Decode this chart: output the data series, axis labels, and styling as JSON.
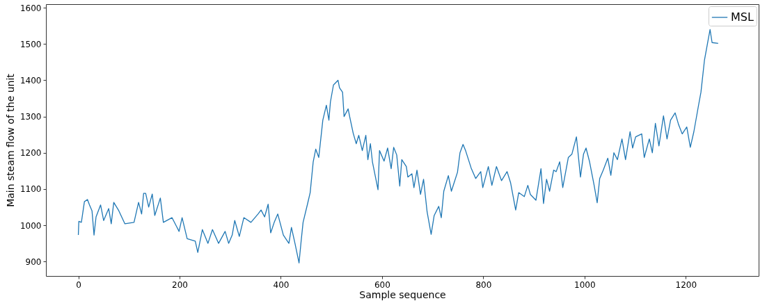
{
  "chart_data": {
    "type": "line",
    "xlabel": "Sample sequence",
    "ylabel": "Main steam flow of the unit",
    "xlim": [
      -64,
      1344
    ],
    "ylim": [
      860,
      1610
    ],
    "xticks": [
      0,
      200,
      400,
      600,
      800,
      1000,
      1200
    ],
    "yticks": [
      900,
      1000,
      1100,
      1200,
      1300,
      1400,
      1500,
      1600
    ],
    "grid": false,
    "legend": "top right",
    "marker": "none",
    "line_style": "solid",
    "series": [
      {
        "name": "MSL",
        "color": "#1f77b4",
        "x": [
          0,
          1,
          6,
          10,
          12,
          18,
          22,
          27,
          31,
          35,
          44,
          50,
          60,
          65,
          70,
          80,
          92,
          110,
          119,
          125,
          129,
          133,
          139,
          146,
          151,
          162,
          168,
          185,
          199,
          205,
          215,
          231,
          236,
          245,
          256,
          265,
          277,
          290,
          297,
          304,
          309,
          318,
          327,
          341,
          355,
          361,
          368,
          375,
          380,
          387,
          394,
          405,
          416,
          421,
          428,
          436,
          440,
          444,
          453,
          458,
          464,
          469,
          475,
          483,
          490,
          495,
          498,
          504,
          513,
          516,
          522,
          525,
          533,
          536,
          543,
          549,
          554,
          561,
          568,
          572,
          577,
          581,
          592,
          595,
          604,
          611,
          618,
          623,
          629,
          635,
          639,
          648,
          651,
          659,
          663,
          669,
          676,
          682,
          689,
          697,
          703,
          712,
          717,
          722,
          731,
          737,
          749,
          754,
          760,
          765,
          776,
          785,
          795,
          799,
          810,
          817,
          826,
          836,
          847,
          854,
          864,
          870,
          881,
          888,
          893,
          904,
          914,
          919,
          925,
          931,
          939,
          944,
          951,
          957,
          968,
          975,
          984,
          992,
          998,
          1003,
          1010,
          1019,
          1025,
          1030,
          1037,
          1046,
          1052,
          1058,
          1065,
          1074,
          1081,
          1090,
          1095,
          1101,
          1113,
          1118,
          1128,
          1134,
          1140,
          1147,
          1156,
          1163,
          1170,
          1179,
          1186,
          1193,
          1202,
          1209,
          1216,
          1225,
          1230,
          1237,
          1243,
          1248,
          1252,
          1264
        ],
        "values": [
          973,
          1011,
          1008,
          1046,
          1065,
          1071,
          1056,
          1040,
          973,
          1023,
          1056,
          1013,
          1046,
          1004,
          1063,
          1040,
          1004,
          1008,
          1063,
          1031,
          1088,
          1088,
          1050,
          1086,
          1027,
          1075,
          1008,
          1021,
          983,
          1021,
          963,
          956,
          925,
          988,
          950,
          988,
          950,
          983,
          950,
          973,
          1013,
          969,
          1021,
          1008,
          1031,
          1042,
          1023,
          1058,
          979,
          1008,
          1031,
          973,
          950,
          994,
          950,
          896,
          954,
          1008,
          1060,
          1090,
          1175,
          1210,
          1187,
          1290,
          1331,
          1290,
          1340,
          1387,
          1400,
          1379,
          1367,
          1300,
          1321,
          1300,
          1254,
          1225,
          1248,
          1206,
          1248,
          1181,
          1225,
          1175,
          1098,
          1206,
          1177,
          1213,
          1156,
          1215,
          1194,
          1108,
          1181,
          1162,
          1133,
          1142,
          1104,
          1152,
          1085,
          1127,
          1037,
          975,
          1027,
          1052,
          1021,
          1094,
          1137,
          1094,
          1146,
          1200,
          1223,
          1206,
          1158,
          1129,
          1148,
          1104,
          1162,
          1110,
          1162,
          1123,
          1148,
          1117,
          1042,
          1090,
          1079,
          1110,
          1085,
          1069,
          1156,
          1060,
          1127,
          1094,
          1152,
          1148,
          1175,
          1104,
          1187,
          1196,
          1244,
          1133,
          1196,
          1213,
          1175,
          1110,
          1062,
          1129,
          1152,
          1185,
          1138,
          1200,
          1181,
          1238,
          1181,
          1258,
          1213,
          1244,
          1252,
          1187,
          1238,
          1200,
          1281,
          1219,
          1302,
          1238,
          1290,
          1310,
          1277,
          1252,
          1271,
          1215,
          1258,
          1329,
          1367,
          1456,
          1502,
          1540,
          1504,
          1502
        ]
      }
    ]
  }
}
